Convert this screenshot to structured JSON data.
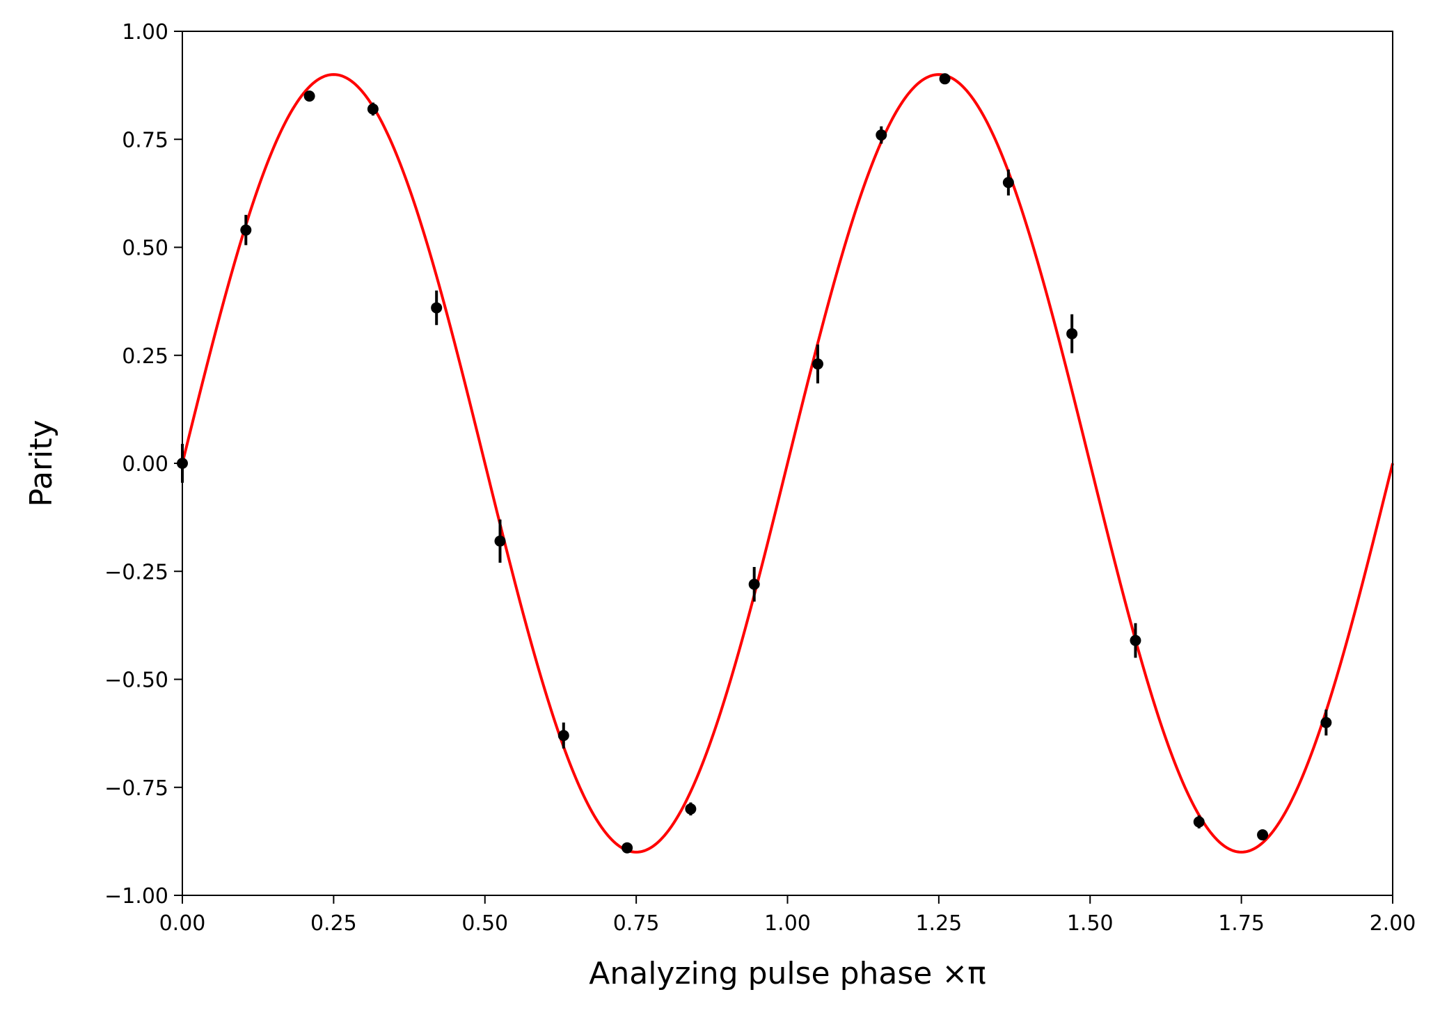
{
  "chart_data": {
    "type": "scatter",
    "xlabel": "Analyzing pulse phase ×π",
    "ylabel": "Parity",
    "xlim": [
      0,
      2
    ],
    "ylim": [
      -1,
      1
    ],
    "grid": false,
    "x_ticks": [
      "0.00",
      "0.25",
      "0.50",
      "0.75",
      "1.00",
      "1.25",
      "1.50",
      "1.75",
      "2.00"
    ],
    "y_ticks": [
      "1.00",
      "0.75",
      "0.50",
      "0.25",
      "0.00",
      "−0.25",
      "−0.50",
      "−0.75",
      "−1.00"
    ],
    "measurements": {
      "color": "#000000",
      "x": [
        0.0,
        0.105,
        0.21,
        0.315,
        0.42,
        0.525,
        0.63,
        0.735,
        0.84,
        0.945,
        1.05,
        1.155,
        1.26,
        1.365,
        1.47,
        1.575,
        1.68,
        1.785,
        1.89
      ],
      "y": [
        0.0,
        0.54,
        0.85,
        0.82,
        0.36,
        -0.18,
        -0.63,
        -0.89,
        -0.8,
        -0.28,
        0.23,
        0.76,
        0.89,
        0.65,
        0.3,
        -0.41,
        -0.83,
        -0.86,
        -0.6
      ],
      "yerr": [
        0.045,
        0.035,
        0.01,
        0.015,
        0.04,
        0.05,
        0.03,
        0.01,
        0.015,
        0.04,
        0.045,
        0.02,
        0.01,
        0.03,
        0.045,
        0.04,
        0.015,
        0.01,
        0.03
      ]
    },
    "fit": {
      "color": "#ff0000",
      "function": "A*sin(2*pi*x)",
      "amplitude": 0.9
    }
  }
}
